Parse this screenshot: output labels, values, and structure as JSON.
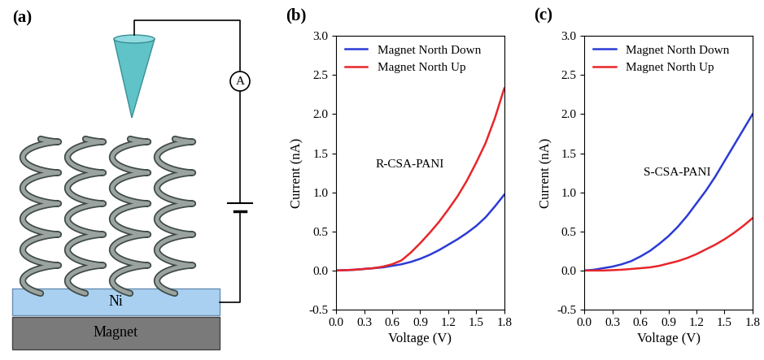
{
  "diagram": {
    "label": "(a)",
    "meter": "A",
    "substrate": "Ni",
    "magnet": "Magnet"
  },
  "chart_data": [
    {
      "type": "line",
      "title": "(b)",
      "annotations": [
        "R-CSA-PANI"
      ],
      "x_label": "Voltage (V)",
      "y_label": "Current (nA)",
      "x": [
        0.0,
        0.1,
        0.2,
        0.3,
        0.4,
        0.5,
        0.6,
        0.7,
        0.8,
        0.9,
        1.0,
        1.1,
        1.2,
        1.3,
        1.4,
        1.5,
        1.6,
        1.7,
        1.8
      ],
      "series": [
        {
          "name": "Magnet North Down",
          "color": "#2b3bd6",
          "values": [
            0,
            0.005,
            0.01,
            0.02,
            0.03,
            0.04,
            0.06,
            0.08,
            0.11,
            0.15,
            0.2,
            0.26,
            0.33,
            0.4,
            0.48,
            0.57,
            0.68,
            0.82,
            0.97
          ]
        },
        {
          "name": "Magnet North Up",
          "color": "#e8262a",
          "values": [
            0,
            0.005,
            0.01,
            0.02,
            0.03,
            0.05,
            0.08,
            0.13,
            0.23,
            0.35,
            0.48,
            0.62,
            0.78,
            0.95,
            1.15,
            1.38,
            1.63,
            1.95,
            2.33
          ]
        }
      ],
      "xlim": [
        0.0,
        1.8
      ],
      "ylim": [
        -0.5,
        3.0
      ],
      "xticks": [
        0.0,
        0.3,
        0.6,
        0.9,
        1.2,
        1.5,
        1.8
      ],
      "yticks": [
        -0.5,
        0.0,
        0.5,
        1.0,
        1.5,
        2.0,
        2.5,
        3.0
      ],
      "legend": "upper left"
    },
    {
      "type": "line",
      "title": "(c)",
      "annotations": [
        "S-CSA-PANI"
      ],
      "x_label": "Voltage (V)",
      "y_label": "Current (nA)",
      "x": [
        0.0,
        0.1,
        0.2,
        0.3,
        0.4,
        0.5,
        0.6,
        0.7,
        0.8,
        0.9,
        1.0,
        1.1,
        1.2,
        1.3,
        1.4,
        1.5,
        1.6,
        1.7,
        1.8
      ],
      "series": [
        {
          "name": "Magnet North Down",
          "color": "#2b3bd6",
          "values": [
            0,
            0.01,
            0.03,
            0.05,
            0.08,
            0.12,
            0.18,
            0.25,
            0.34,
            0.44,
            0.56,
            0.7,
            0.86,
            1.02,
            1.2,
            1.4,
            1.6,
            1.8,
            2.0
          ]
        },
        {
          "name": "Magnet North Up",
          "color": "#e8262a",
          "values": [
            0,
            0,
            0,
            0.005,
            0.01,
            0.02,
            0.03,
            0.04,
            0.06,
            0.09,
            0.12,
            0.16,
            0.21,
            0.27,
            0.33,
            0.4,
            0.48,
            0.57,
            0.67
          ]
        }
      ],
      "xlim": [
        0.0,
        1.8
      ],
      "ylim": [
        -0.5,
        3.0
      ],
      "xticks": [
        0.0,
        0.3,
        0.6,
        0.9,
        1.2,
        1.5,
        1.8
      ],
      "yticks": [
        -0.5,
        0.0,
        0.5,
        1.0,
        1.5,
        2.0,
        2.5,
        3.0
      ],
      "legend": "upper left"
    }
  ]
}
